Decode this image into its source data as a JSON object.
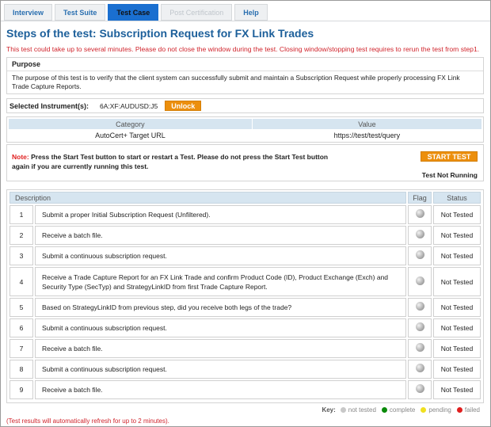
{
  "tabs": [
    {
      "label": "Interview",
      "state": "normal"
    },
    {
      "label": "Test Suite",
      "state": "normal"
    },
    {
      "label": "Test Case",
      "state": "active"
    },
    {
      "label": "Post Certification",
      "state": "disabled"
    },
    {
      "label": "Help",
      "state": "normal"
    }
  ],
  "title": "Steps of the test: Subscription Request for FX Link Trades",
  "warning": "This test could take up to several minutes. Please do not close the window during the test. Closing window/stopping test requires to rerun the test from step1.",
  "purpose": {
    "heading": "Purpose",
    "text": "The purpose of this test is to verify that the client system can successfully submit and maintain a Subscription Request while properly processing FX Link Trade Capture Reports."
  },
  "instrument": {
    "label": "Selected Instrument(s):",
    "value": "6A:XF:AUDUSD:J5",
    "unlock_label": "Unlock"
  },
  "config": {
    "headers": [
      "Category",
      "Value"
    ],
    "rows": [
      [
        "AutoCert+ Target URL",
        "https://test/test/query"
      ]
    ]
  },
  "note": {
    "prefix": "Note:",
    "text": " Press the Start Test button to start or restart a Test. Please do not press the Start Test button again if you are currently running this test.",
    "start_label": "START TEST",
    "run_status": "Test Not Running"
  },
  "steps": {
    "headers": [
      "Description",
      "Flag",
      "Status"
    ],
    "rows": [
      {
        "num": "1",
        "desc": "Submit a proper Initial Subscription Request (Unfiltered).",
        "status": "Not Tested"
      },
      {
        "num": "2",
        "desc": "Receive a batch file.",
        "status": "Not Tested"
      },
      {
        "num": "3",
        "desc": "Submit a continuous subscription request.",
        "status": "Not Tested"
      },
      {
        "num": "4",
        "desc": "Receive a Trade Capture Report for an FX Link Trade and confirm Product Code (ID), Product Exchange (Exch) and Security Type (SecTyp) and StrategyLinkID from first Trade Capture Report.",
        "status": "Not Tested"
      },
      {
        "num": "5",
        "desc": "Based on StrategyLinkID from previous step, did you receive both legs of the trade?",
        "status": "Not Tested"
      },
      {
        "num": "6",
        "desc": "Submit a continuous subscription request.",
        "status": "Not Tested"
      },
      {
        "num": "7",
        "desc": "Receive a batch file.",
        "status": "Not Tested"
      },
      {
        "num": "8",
        "desc": "Submit a continuous subscription request.",
        "status": "Not Tested"
      },
      {
        "num": "9",
        "desc": "Receive a batch file.",
        "status": "Not Tested"
      }
    ]
  },
  "key": {
    "label": "Key:",
    "items": [
      {
        "label": "not tested",
        "color": "#c8c8c8"
      },
      {
        "label": "complete",
        "color": "#0a8a0a"
      },
      {
        "label": "pending",
        "color": "#f0e020"
      },
      {
        "label": "failed",
        "color": "#e01f1f"
      }
    ]
  },
  "footer": "(Test results will automatically refresh for up to 2 minutes)."
}
